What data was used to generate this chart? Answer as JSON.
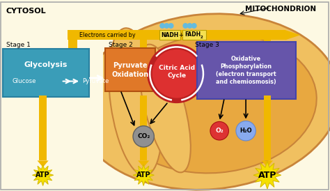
{
  "bg_color": "#fdf9e3",
  "title_cytosol": "CYTOSOL",
  "title_mito": "MITOCHONDRION",
  "mito_outer_color": "#f0c060",
  "mito_inner_color": "#e8a840",
  "mito_edge_color": "#c8843a",
  "electrons_text": "Electrons carried by ",
  "nadh_text": "NADH",
  "fadh_text": "FADH",
  "sub2": "2",
  "nadh_bg": "#f5e050",
  "dot_color": "#66bbdd",
  "stage1_label": "Stage 1",
  "stage2_label": "Stage 2",
  "stage3_label": "Stage 3",
  "box1_color": "#3a9db8",
  "box1_text1": "Glycolysis",
  "box1_text2": "Glucose",
  "box1_text3": "Pyruvate",
  "box2_color": "#e07828",
  "box2_text": "Pyruvate\nOxidation",
  "circle_outer_color": "#bb2020",
  "circle_inner_color": "#dd3030",
  "circle_text": "Citric Acid\nCycle",
  "box3_color": "#6655aa",
  "box3_text": "Oxidative\nPhosphorylation\n(electron transport\nand chemiosmosis)",
  "arrow_color": "#f0b800",
  "arrow_edge": "#d09000",
  "atp_color": "#f5e000",
  "atp_text": "ATP",
  "co2_color": "#909090",
  "co2_edge": "#606060",
  "co2_text": "CO₂",
  "o2_color": "#dd3333",
  "o2_text": "O₂",
  "h2o_color": "#88aaee",
  "h2o_text": "H₂O",
  "white_arrow_color": "#ffffff"
}
